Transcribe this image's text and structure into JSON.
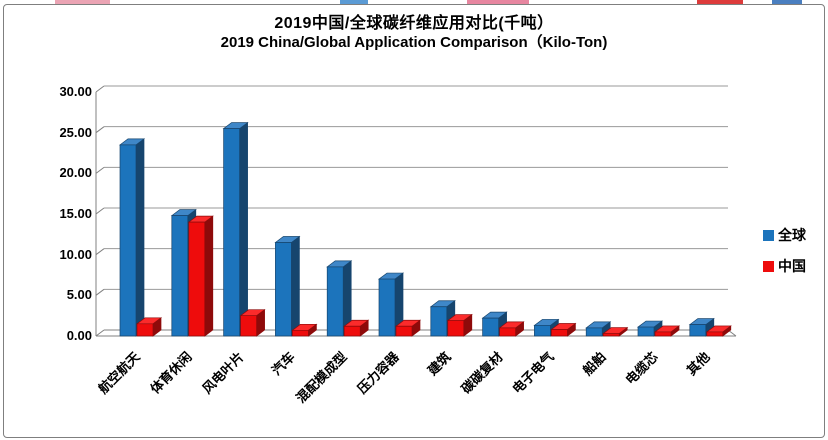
{
  "title": {
    "line1": "2019中国/全球碳纤维应用对比(千吨）",
    "line2": "2019 China/Global Application Comparison（Kilo-Ton)"
  },
  "legend": {
    "items": [
      {
        "label": "全球",
        "color": "#1C74BC"
      },
      {
        "label": "中国",
        "color": "#EE0C0C"
      }
    ]
  },
  "chart_data": {
    "type": "bar",
    "style": "3d-clustered-column",
    "title": "2019中国/全球碳纤维应用对比(千吨）",
    "subtitle": "2019 China/Global Application Comparison（Kilo-Ton)",
    "categories": [
      "航空航天",
      "体育休闲",
      "风电叶片",
      "汽车",
      "混配模成型",
      "压力容器",
      "建筑",
      "碳碳复材",
      "电子电气",
      "船舶",
      "电缆芯",
      "其他"
    ],
    "series": [
      {
        "name": "全球",
        "color": "#1C74BC",
        "top_color": "#3F87C8",
        "side_color": "#16456E",
        "values": [
          23.5,
          14.8,
          25.5,
          11.5,
          8.5,
          7.0,
          3.6,
          2.2,
          1.3,
          1.0,
          1.1,
          1.4
        ]
      },
      {
        "name": "中国",
        "color": "#EE0C0C",
        "top_color": "#FB2B2B",
        "side_color": "#8E0A0A",
        "values": [
          1.5,
          14.0,
          2.5,
          0.7,
          1.2,
          1.2,
          1.9,
          1.0,
          0.8,
          0.3,
          0.5,
          0.5
        ]
      }
    ],
    "xlabel": "",
    "ylabel": "",
    "ylim": [
      0,
      30
    ],
    "ytick_step": 5,
    "ytick_labels": [
      "0.00",
      "5.00",
      "10.00",
      "15.00",
      "20.00",
      "25.00",
      "30.00"
    ],
    "grid": true,
    "legend_position": "right"
  }
}
